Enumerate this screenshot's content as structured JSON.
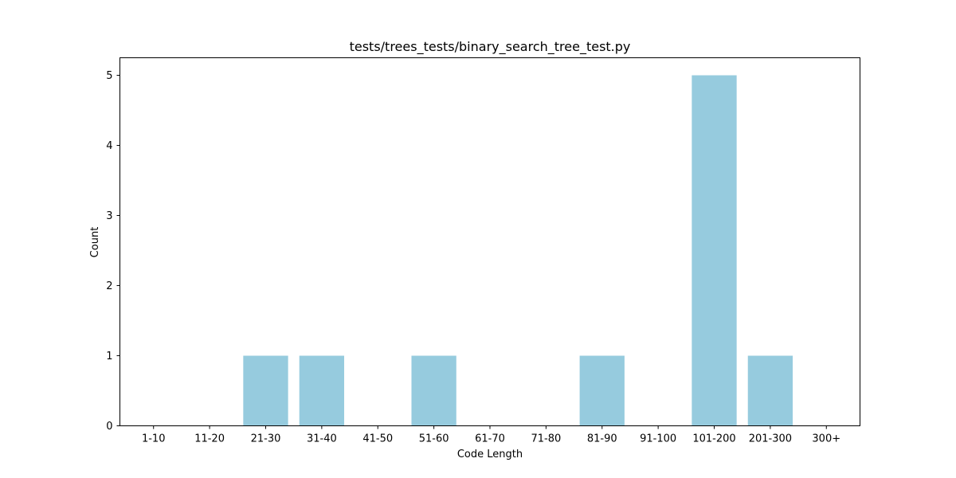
{
  "chart_data": {
    "type": "bar",
    "title": "tests/trees_tests/binary_search_tree_test.py",
    "xlabel": "Code Length",
    "ylabel": "Count",
    "categories": [
      "1-10",
      "11-20",
      "21-30",
      "31-40",
      "41-50",
      "51-60",
      "61-70",
      "71-80",
      "81-90",
      "91-100",
      "101-200",
      "201-300",
      "300+"
    ],
    "values": [
      0,
      0,
      1,
      1,
      0,
      1,
      0,
      0,
      1,
      0,
      5,
      1,
      0
    ],
    "yticks": [
      0,
      1,
      2,
      3,
      4,
      5
    ],
    "ylim": [
      0,
      5.25
    ],
    "bar_color": "#96cbde",
    "grid": false,
    "legend": "none"
  }
}
